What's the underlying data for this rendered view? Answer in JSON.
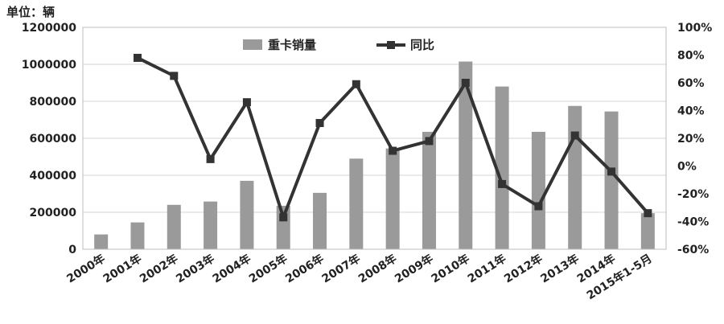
{
  "chart_data": {
    "type": "bar+line",
    "unit_label": "单位：辆",
    "categories": [
      "2000年",
      "2001年",
      "2002年",
      "2003年",
      "2004年",
      "2005年",
      "2006年",
      "2007年",
      "2008年",
      "2009年",
      "2010年",
      "2011年",
      "2012年",
      "2013年",
      "2014年",
      "2015年1-5月"
    ],
    "series": [
      {
        "name": "重卡销量",
        "type": "bar",
        "axis": "left",
        "color": "#9a9a9a",
        "values": [
          80000,
          145000,
          240000,
          258000,
          370000,
          235000,
          305000,
          490000,
          545000,
          635000,
          1015000,
          880000,
          635000,
          775000,
          745000,
          195000
        ]
      },
      {
        "name": "同比",
        "type": "line",
        "axis": "right",
        "color": "#333333",
        "values": [
          null,
          78,
          65,
          5,
          46,
          -37,
          31,
          59,
          11,
          18,
          60,
          -13,
          -29,
          22,
          -4,
          -34
        ]
      }
    ],
    "left_axis": {
      "ylim": [
        0,
        1200000
      ],
      "ticks": [
        "0",
        "200000",
        "400000",
        "600000",
        "800000",
        "1000000",
        "1200000"
      ]
    },
    "right_axis": {
      "ylim": [
        -60,
        100
      ],
      "ticks": [
        "-60%",
        "-40%",
        "-20%",
        "0%",
        "20%",
        "40%",
        "60%",
        "80%",
        "100%"
      ]
    },
    "grid": true,
    "legend_position": "top-center"
  }
}
